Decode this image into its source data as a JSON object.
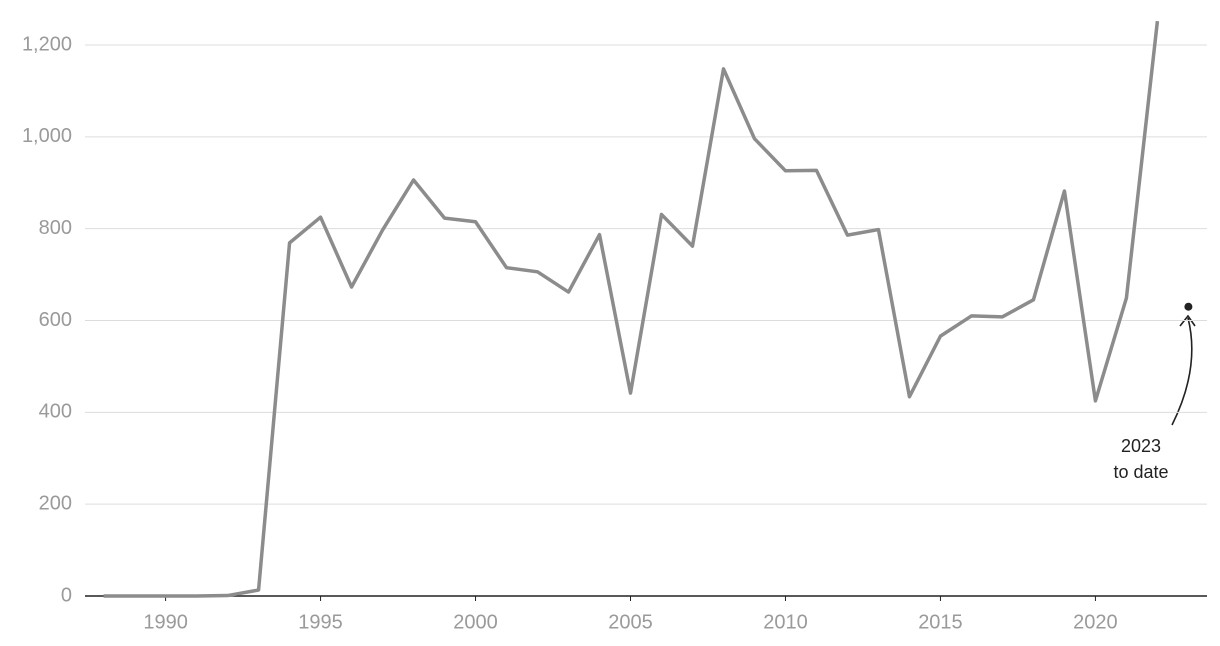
{
  "chart_data": {
    "type": "line",
    "x": [
      1988,
      1989,
      1990,
      1991,
      1992,
      1993,
      1994,
      1995,
      1996,
      1997,
      1998,
      1999,
      2000,
      2001,
      2002,
      2003,
      2004,
      2005,
      2006,
      2007,
      2008,
      2009,
      2010,
      2011,
      2012,
      2013,
      2014,
      2015,
      2016,
      2017,
      2018,
      2019,
      2020,
      2021,
      2022
    ],
    "series": [
      {
        "color": "#8c8c8c",
        "values": [
          0,
          0,
          0,
          0,
          1,
          13,
          769,
          825,
          673,
          797,
          906,
          823,
          815,
          715,
          706,
          662,
          787,
          442,
          831,
          762,
          1148,
          996,
          926,
          927,
          786,
          798,
          434,
          566,
          610,
          608,
          645,
          882,
          425,
          649,
          1252
        ]
      }
    ],
    "xlim": [
      1987.4,
      2023.6
    ],
    "xticks": [
      1990,
      1995,
      2000,
      2005,
      2010,
      2015,
      2020
    ],
    "ylim": [
      0,
      1280
    ],
    "yticks": [
      0,
      200,
      400,
      600,
      800,
      {
        "value": 1000,
        "label": "1,000"
      },
      {
        "value": 1200,
        "label": "1,200"
      }
    ],
    "grid": true,
    "annotations": [
      {
        "x": 2023,
        "y": 630,
        "color": "#222222",
        "text": [
          "2023",
          "to date"
        ]
      }
    ]
  }
}
